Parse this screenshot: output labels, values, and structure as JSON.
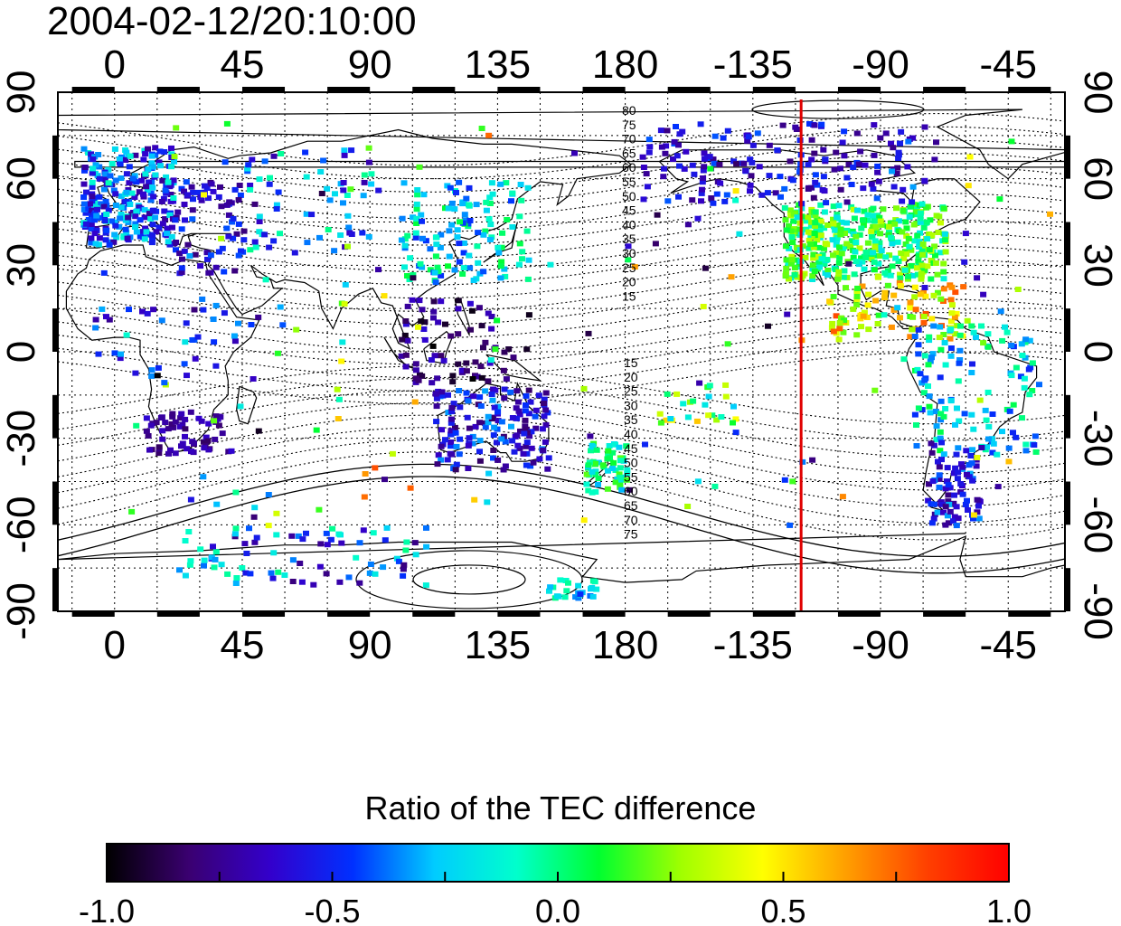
{
  "title": "2004-02-12/20:10:00",
  "map": {
    "x_ticks_top": [
      "0",
      "45",
      "90",
      "135",
      "180",
      "-135",
      "-90",
      "-45"
    ],
    "x_ticks_bottom": [
      "0",
      "45",
      "90",
      "135",
      "180",
      "-135",
      "-90",
      "-45"
    ],
    "y_ticks_left": [
      "90",
      "60",
      "30",
      "0",
      "-30",
      "-60",
      "-90"
    ],
    "y_ticks_right": [
      "90",
      "60",
      "30",
      "0",
      "-30",
      "-60",
      "-90"
    ],
    "lon_range": [
      -20,
      335
    ],
    "lat_range": [
      -90,
      90
    ],
    "marker_line": {
      "longitude": -118,
      "color": "#e00000"
    },
    "contour_labels_north": [
      "80",
      "75",
      "70",
      "65",
      "60",
      "55",
      "50",
      "45",
      "40",
      "35",
      "30",
      "25",
      "20",
      "15"
    ],
    "contour_labels_south": [
      "15",
      "20",
      "25",
      "30",
      "35",
      "40",
      "45",
      "50",
      "55",
      "60",
      "65",
      "70",
      "75"
    ]
  },
  "colorbar": {
    "title": "Ratio of the TEC difference",
    "range": [
      -1.0,
      1.0
    ],
    "ticks": [
      "-1.0",
      "-0.5",
      "0.0",
      "0.5",
      "1.0"
    ],
    "colors": [
      "#000000",
      "#3a0070",
      "#3300cc",
      "#0030ff",
      "#00ccff",
      "#00ffcc",
      "#00ff30",
      "#a0ff00",
      "#ffff00",
      "#ffa000",
      "#ff4000",
      "#ff0000"
    ]
  }
}
